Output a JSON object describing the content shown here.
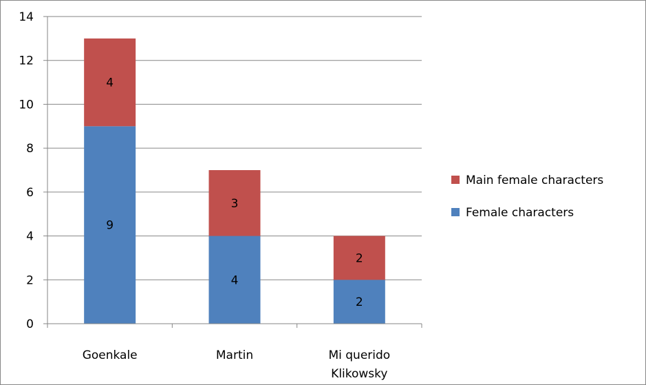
{
  "chart_data": {
    "type": "bar",
    "stacked": true,
    "categories": [
      "Goenkale",
      "Martin",
      "Mi querido Klikowsky"
    ],
    "category_lines": [
      [
        "Goenkale"
      ],
      [
        "Martin"
      ],
      [
        "Mi querido",
        "Klikowsky"
      ]
    ],
    "series": [
      {
        "name": "Female characters",
        "values": [
          9,
          4,
          2
        ],
        "color": "#4F81BD"
      },
      {
        "name": "Main female characters",
        "values": [
          4,
          3,
          2
        ],
        "color": "#C0504D"
      }
    ],
    "ylim": [
      0,
      14
    ],
    "yticks": [
      0,
      2,
      4,
      6,
      8,
      10,
      12,
      14
    ],
    "grid": true,
    "legend": "right",
    "title": "",
    "xlabel": "",
    "ylabel": ""
  }
}
